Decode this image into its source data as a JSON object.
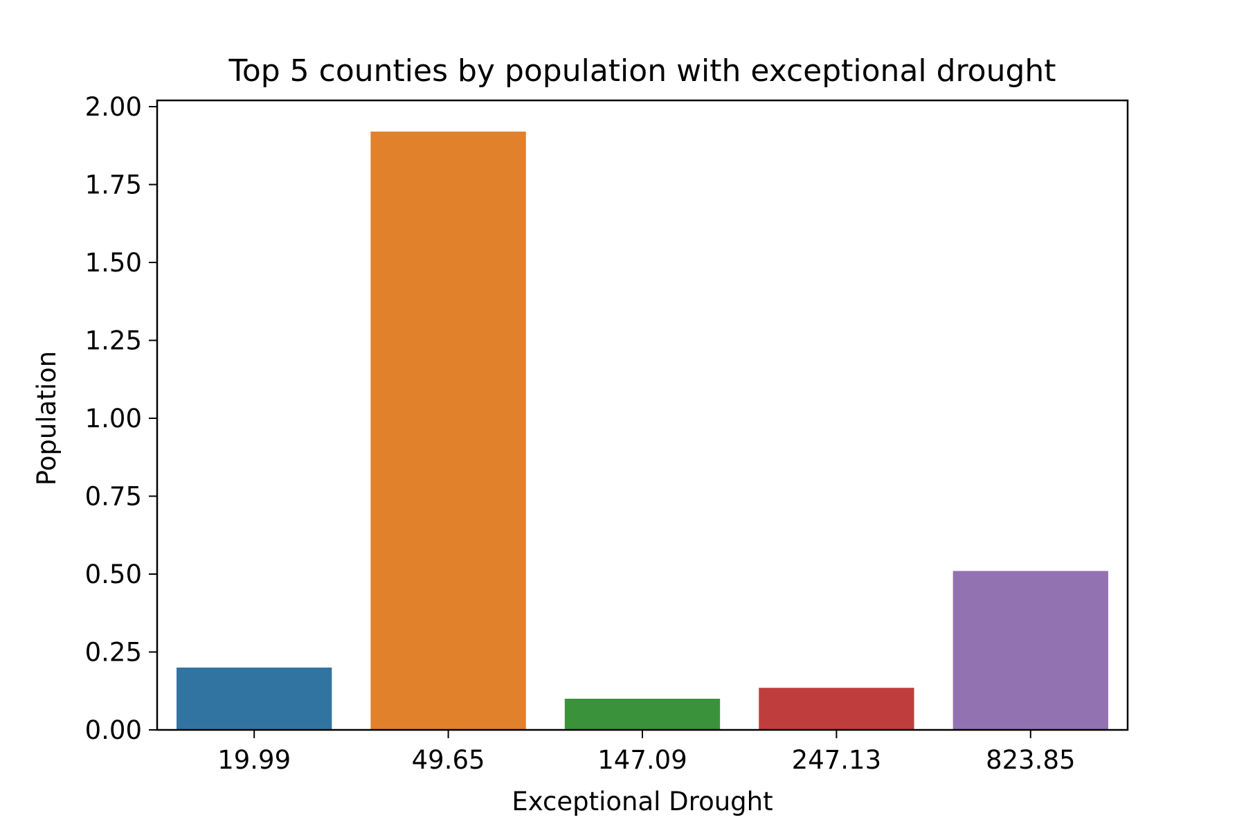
{
  "chart_data": {
    "type": "bar",
    "title": "Top 5 counties by population with exceptional drought",
    "xlabel": "Exceptional Drought",
    "ylabel": "Population",
    "categories": [
      "19.99",
      "49.65",
      "147.09",
      "247.13",
      "823.85"
    ],
    "values": [
      0.2,
      1.92,
      0.1,
      0.135,
      0.51
    ],
    "colors": [
      "#3274a1",
      "#e1812c",
      "#3a923a",
      "#c03d3e",
      "#9372b2"
    ],
    "ylim": [
      0,
      2.02
    ],
    "yticks": [
      "0.00",
      "0.25",
      "0.50",
      "0.75",
      "1.00",
      "1.25",
      "1.50",
      "1.75",
      "2.00"
    ],
    "grid": false,
    "legend": "none"
  }
}
